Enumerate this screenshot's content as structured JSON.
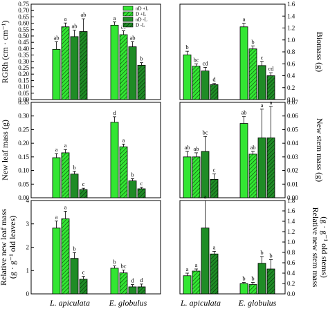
{
  "chart_data": {
    "type": "bar",
    "categories": [
      "L. apiculata",
      "E. globulus"
    ],
    "series": [
      {
        "name": "nD +L",
        "color": "#33e633",
        "pattern": "solid"
      },
      {
        "name": "D +L",
        "color": "#33e633",
        "pattern": "hatch"
      },
      {
        "name": "nD -L",
        "color": "#1f8c26",
        "pattern": "solid"
      },
      {
        "name": "D -L",
        "color": "#1f8c26",
        "pattern": "hatch"
      }
    ],
    "legend_location": "top, inside upper-left panel",
    "panels": [
      {
        "id": "rgrh",
        "side": "left",
        "row": 1,
        "ylabel": "RGRh (cm · cm⁻¹)",
        "ylim": [
          0,
          0.75
        ],
        "yticks": [
          "0.00",
          "0.05",
          "0.10",
          "0.15",
          "0.20",
          "0.25",
          "0.30",
          "0.35",
          "0.40",
          "0.45",
          "0.50",
          "0.55",
          "0.60",
          "0.65",
          "0.70",
          "0.75"
        ],
        "ytick_values": [
          0,
          0.05,
          0.1,
          0.15,
          0.2,
          0.25,
          0.3,
          0.35,
          0.4,
          0.45,
          0.5,
          0.55,
          0.6,
          0.65,
          0.7,
          0.75
        ],
        "values": [
          [
            0.395,
            0.572,
            0.495,
            0.535
          ],
          [
            0.585,
            0.51,
            0.415,
            0.27
          ]
        ],
        "errors": [
          [
            0.06,
            0.03,
            0.05,
            0.1
          ],
          [
            0.025,
            0.03,
            0.04,
            0.02
          ]
        ],
        "letters": [
          [
            "ab",
            "a",
            "ab",
            "ab"
          ],
          [
            "a",
            "ab",
            "ab",
            "b"
          ]
        ]
      },
      {
        "id": "biomass",
        "side": "right",
        "row": 1,
        "ylabel": "Biomass (g)",
        "ylim": [
          0,
          1.6
        ],
        "yticks": [
          "0.0",
          "0.2",
          "0.4",
          "0.6",
          "0.8",
          "1.0",
          "1.2",
          "1.4",
          "1.6"
        ],
        "ytick_values": [
          0,
          0.2,
          0.4,
          0.6,
          0.8,
          1.0,
          1.2,
          1.4,
          1.6
        ],
        "values": [
          [
            0.75,
            0.56,
            0.48,
            0.25
          ],
          [
            1.22,
            0.85,
            0.57,
            0.4
          ]
        ],
        "errors": [
          [
            0.06,
            0.04,
            0.06,
            0.02
          ],
          [
            0.06,
            0.05,
            0.07,
            0.05
          ]
        ],
        "letters": [
          [
            "b",
            "bc",
            "cd",
            "d"
          ],
          [
            "a",
            "b",
            "c",
            "cd"
          ]
        ]
      },
      {
        "id": "newleaf",
        "side": "left",
        "row": 2,
        "ylabel": "New leaf mass (g)",
        "ylim": [
          0,
          0.35
        ],
        "yticks": [
          "0.00",
          "0.05",
          "0.10",
          "0.15",
          "0.20",
          "0.25",
          "0.30",
          "0.35"
        ],
        "ytick_values": [
          0,
          0.05,
          0.1,
          0.15,
          0.2,
          0.25,
          0.3,
          0.35
        ],
        "values": [
          [
            0.147,
            0.165,
            0.087,
            0.03
          ],
          [
            0.277,
            0.187,
            0.062,
            0.033
          ]
        ],
        "errors": [
          [
            0.015,
            0.012,
            0.01,
            0.005
          ],
          [
            0.02,
            0.01,
            0.008,
            0.005
          ]
        ],
        "letters": [
          [
            "a",
            "a",
            "b",
            "c"
          ],
          [
            "d",
            "a",
            "b",
            "c"
          ]
        ]
      },
      {
        "id": "newstem",
        "side": "right",
        "row": 2,
        "ylabel": "New stem mass (g)",
        "ylim": [
          0,
          0.07
        ],
        "yticks": [
          "0.00",
          "0.01",
          "0.02",
          "0.03",
          "0.04",
          "0.05",
          "0.06",
          "0.07"
        ],
        "ytick_values": [
          0,
          0.01,
          0.02,
          0.03,
          0.04,
          0.05,
          0.06,
          0.07
        ],
        "values": [
          [
            0.03,
            0.03,
            0.034,
            0.0135
          ],
          [
            0.0545,
            0.032,
            0.044,
            0.044
          ]
        ],
        "errors": [
          [
            0.004,
            0.003,
            0.011,
            0.004
          ],
          [
            0.005,
            0.002,
            0.021,
            0.023
          ]
        ],
        "letters": [
          [
            "ab",
            "ab",
            "bc",
            "c"
          ],
          [
            "ab",
            "ab",
            "a",
            "a"
          ]
        ]
      },
      {
        "id": "relleaf",
        "side": "left",
        "row": 3,
        "ylabel": "Relative new leaf mass",
        "ylabel2": "(g · g⁻¹ old leaves)",
        "ylim": [
          0,
          4
        ],
        "yticks": [
          "0",
          "1",
          "2",
          "3",
          "4"
        ],
        "ytick_values": [
          0,
          1,
          2,
          3,
          4
        ],
        "values": [
          [
            2.82,
            3.22,
            1.52,
            0.63
          ],
          [
            1.1,
            0.9,
            0.3,
            0.3
          ]
        ],
        "errors": [
          [
            0.3,
            0.32,
            0.25,
            0.12
          ],
          [
            0.1,
            0.12,
            0.1,
            0.12
          ]
        ],
        "letters": [
          [
            "a",
            "a",
            "b",
            "c"
          ],
          [
            "b",
            "bc",
            "d",
            "d"
          ]
        ]
      },
      {
        "id": "relstem",
        "side": "right",
        "row": 3,
        "ylabel": "Relative new stem mass",
        "ylabel2": "(g · g⁻¹ old stems)",
        "ylim": [
          0,
          1.8
        ],
        "yticks": [
          "0.0",
          "0.2",
          "0.4",
          "0.6",
          "0.8",
          "1.0",
          "1.2",
          "1.4",
          "1.6",
          "1.8"
        ],
        "ytick_values": [
          0,
          0.2,
          0.4,
          0.6,
          0.8,
          1.0,
          1.2,
          1.4,
          1.6,
          1.8
        ],
        "values": [
          [
            0.35,
            0.44,
            1.27,
            0.77
          ],
          [
            0.2,
            0.18,
            0.59,
            0.48
          ]
        ],
        "errors": [
          [
            0.05,
            0.04,
            0.53,
            0.05
          ],
          [
            0.02,
            0.04,
            0.13,
            0.18
          ]
        ],
        "letters": [
          [
            "a",
            "a",
            "a",
            "a"
          ],
          [
            "b",
            "b",
            "b",
            "b"
          ]
        ]
      }
    ]
  }
}
